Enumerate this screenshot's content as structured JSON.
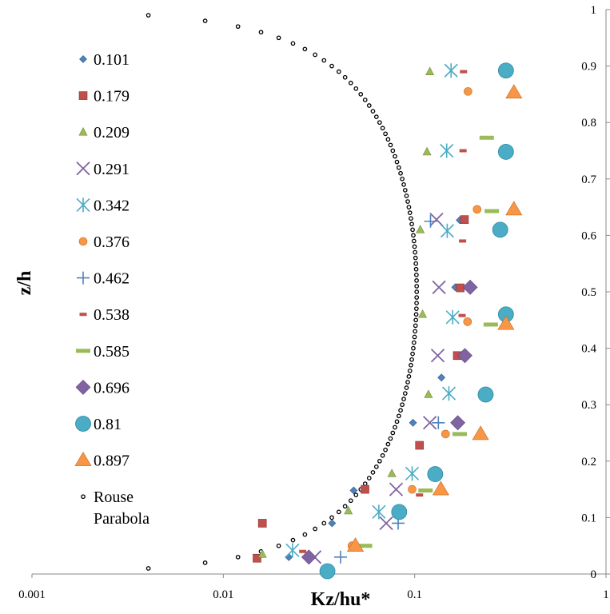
{
  "chart_data": {
    "type": "scatter",
    "x_scale": "log",
    "xlim": [
      0.001,
      1
    ],
    "ylim": [
      0,
      1
    ],
    "xlabel": "Kz/hu*",
    "ylabel": "z/h",
    "x_ticks": [
      "0.001",
      "0.01",
      "0.1",
      "1"
    ],
    "x_tick_values": [
      0.001,
      0.01,
      0.1,
      1
    ],
    "y_ticks": [
      "0",
      "0.1",
      "0.2",
      "0.3",
      "0.4",
      "0.5",
      "0.6",
      "0.7",
      "0.8",
      "0.9",
      "1"
    ],
    "y_tick_values": [
      0,
      0.1,
      0.2,
      0.3,
      0.4,
      0.5,
      0.6,
      0.7,
      0.8,
      0.9,
      1
    ],
    "y_axis_position": "right",
    "grid": false,
    "legend_position": "left",
    "series": [
      {
        "name": "0.101",
        "marker": "diamond",
        "color": "#4F81BD",
        "points": [
          [
            0.022,
            0.03
          ],
          [
            0.037,
            0.09
          ],
          [
            0.048,
            0.148
          ],
          [
            0.098,
            0.268
          ],
          [
            0.138,
            0.348
          ],
          [
            0.163,
            0.508
          ],
          [
            0.172,
            0.627
          ]
        ]
      },
      {
        "name": "0.179",
        "marker": "square",
        "color": "#C0504D",
        "points": [
          [
            0.015,
            0.028
          ],
          [
            0.016,
            0.09
          ],
          [
            0.055,
            0.15
          ],
          [
            0.106,
            0.228
          ],
          [
            0.167,
            0.387
          ],
          [
            0.173,
            0.507
          ],
          [
            0.182,
            0.628
          ]
        ]
      },
      {
        "name": "0.209",
        "marker": "triangle",
        "color": "#9BBB59",
        "points": [
          [
            0.016,
            0.035
          ],
          [
            0.045,
            0.112
          ],
          [
            0.076,
            0.178
          ],
          [
            0.118,
            0.318
          ],
          [
            0.11,
            0.46
          ],
          [
            0.107,
            0.61
          ],
          [
            0.116,
            0.748
          ],
          [
            0.12,
            0.89
          ]
        ]
      },
      {
        "name": "0.291",
        "marker": "x",
        "color": "#8064A2",
        "points": [
          [
            0.03,
            0.03
          ],
          [
            0.071,
            0.09
          ],
          [
            0.08,
            0.15
          ],
          [
            0.12,
            0.268
          ],
          [
            0.132,
            0.387
          ],
          [
            0.134,
            0.508
          ],
          [
            0.13,
            0.628
          ]
        ]
      },
      {
        "name": "0.342",
        "marker": "star",
        "color": "#4BACC6",
        "points": [
          [
            0.023,
            0.042
          ],
          [
            0.065,
            0.11
          ],
          [
            0.097,
            0.178
          ],
          [
            0.151,
            0.32
          ],
          [
            0.158,
            0.455
          ],
          [
            0.148,
            0.608
          ],
          [
            0.147,
            0.75
          ],
          [
            0.155,
            0.892
          ]
        ]
      },
      {
        "name": "0.376",
        "marker": "circle",
        "color": "#F79646",
        "points": [
          [
            0.047,
            0.05
          ],
          [
            0.097,
            0.15
          ],
          [
            0.145,
            0.248
          ],
          [
            0.189,
            0.447
          ],
          [
            0.212,
            0.646
          ],
          [
            0.19,
            0.855
          ]
        ]
      },
      {
        "name": "0.462",
        "marker": "plus",
        "color": "#4F81BD",
        "points": [
          [
            0.041,
            0.03
          ],
          [
            0.082,
            0.09
          ],
          [
            0.133,
            0.268
          ],
          [
            0.121,
            0.625
          ]
        ]
      },
      {
        "name": "0.538",
        "marker": "dash",
        "color": "#C0504D",
        "points": [
          [
            0.026,
            0.04
          ],
          [
            0.106,
            0.14
          ],
          [
            0.177,
            0.458
          ],
          [
            0.178,
            0.59
          ],
          [
            0.179,
            0.75
          ],
          [
            0.18,
            0.89
          ]
        ]
      },
      {
        "name": "0.585",
        "marker": "dash-wide",
        "color": "#9BBB59",
        "points": [
          [
            0.055,
            0.05
          ],
          [
            0.114,
            0.148
          ],
          [
            0.172,
            0.248
          ],
          [
            0.25,
            0.442
          ],
          [
            0.253,
            0.643
          ],
          [
            0.238,
            0.773
          ]
        ]
      },
      {
        "name": "0.696",
        "marker": "diamond-large",
        "color": "#8064A2",
        "points": [
          [
            0.028,
            0.03
          ],
          [
            0.168,
            0.268
          ],
          [
            0.183,
            0.387
          ],
          [
            0.195,
            0.508
          ]
        ]
      },
      {
        "name": "0.81",
        "marker": "circle-large",
        "color": "#4BACC6",
        "points": [
          [
            0.035,
            0.005
          ],
          [
            0.083,
            0.11
          ],
          [
            0.128,
            0.177
          ],
          [
            0.235,
            0.318
          ],
          [
            0.28,
            0.61
          ],
          [
            0.3,
            0.46
          ],
          [
            0.3,
            0.748
          ],
          [
            0.3,
            0.892
          ]
        ]
      },
      {
        "name": "0.897",
        "marker": "triangle-large",
        "color": "#F79646",
        "points": [
          [
            0.049,
            0.05
          ],
          [
            0.137,
            0.15
          ],
          [
            0.221,
            0.248
          ],
          [
            0.3,
            0.443
          ],
          [
            0.33,
            0.646
          ],
          [
            0.33,
            0.853
          ]
        ]
      }
    ],
    "rouse": {
      "name": "Rouse Parabola",
      "marker": "small-circle",
      "color": "#000000"
    }
  }
}
